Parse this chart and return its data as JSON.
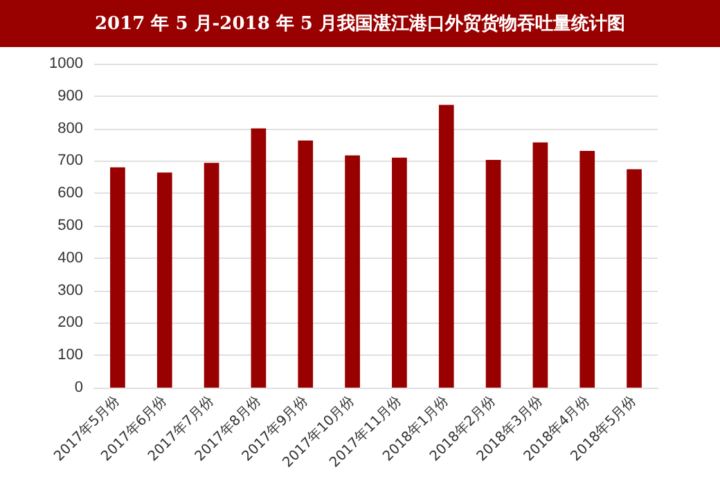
{
  "chart_data": {
    "type": "bar",
    "title": "2017 年 5 月-2018 年 5 月我国湛江港口外贸货物吞吐量统计图",
    "categories": [
      "2017年5月份",
      "2017年6月份",
      "2017年7月份",
      "2017年8月份",
      "2017年9月份",
      "2017年10月份",
      "2017年11月份",
      "2018年1月份",
      "2018年2月份",
      "2018年3月份",
      "2018年4月份",
      "2018年5月份"
    ],
    "values": [
      680,
      664,
      694,
      800,
      763,
      717,
      710,
      873,
      703,
      757,
      731,
      674
    ],
    "color": "#990000",
    "ylim": [
      0,
      1000
    ],
    "yticks": [
      0,
      100,
      200,
      300,
      400,
      500,
      600,
      700,
      800,
      900,
      1000
    ],
    "grid": "y"
  }
}
